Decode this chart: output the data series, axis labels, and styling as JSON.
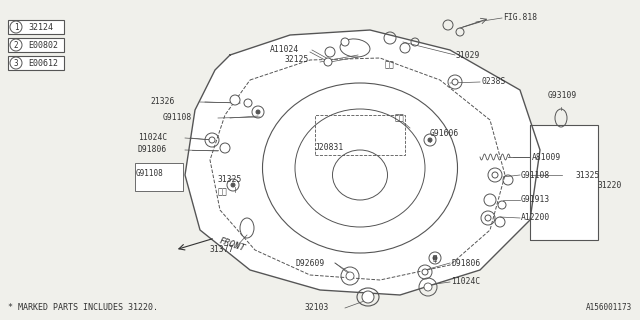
{
  "bg_color": "#f0f0eb",
  "line_color": "#555555",
  "text_color": "#333333",
  "legend_items": [
    {
      "num": "1",
      "code": "32124"
    },
    {
      "num": "2",
      "code": "E00802"
    },
    {
      "num": "3",
      "code": "E00612"
    }
  ],
  "footer_text": "* MARKED PARTS INCLUDES 31220.",
  "diagram_id": "A156001173"
}
